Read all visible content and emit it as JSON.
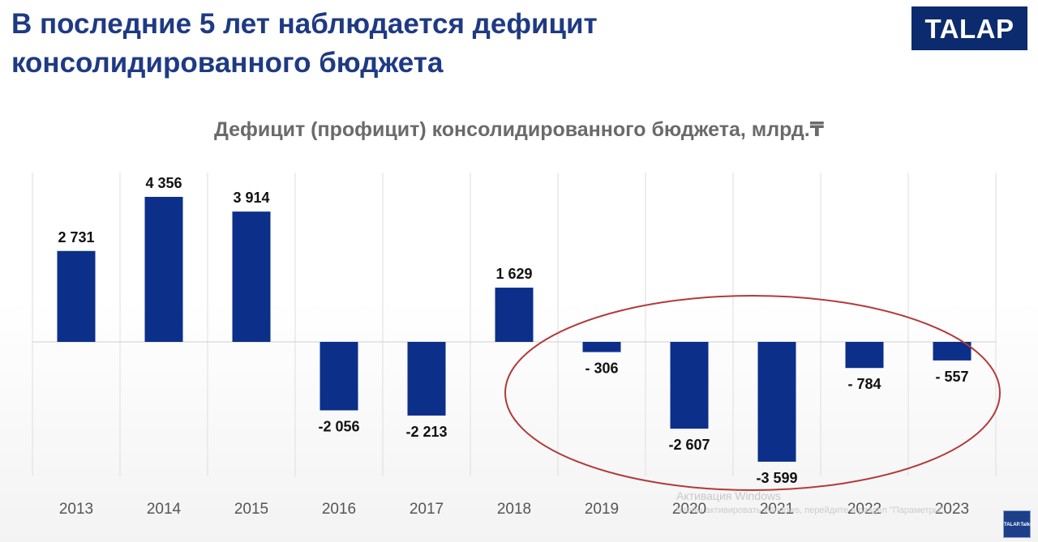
{
  "slide": {
    "title": "В последние 5 лет наблюдается дефицит консолидированного бюджета"
  },
  "logo": {
    "text": "TALAP"
  },
  "colors": {
    "title": "#1f3a84",
    "bar": "#0c2f8a",
    "logo_bg": "#0c2a6e",
    "highlight_ellipse": "#b23a3a",
    "chart_title": "#6a6a6a"
  },
  "chart_data": {
    "type": "bar",
    "title": "Дефицит (профицит) консолидированного бюджета, млрд.₸",
    "categories": [
      "2013",
      "2014",
      "2015",
      "2016",
      "2017",
      "2018",
      "2019",
      "2020",
      "2021",
      "2022",
      "2023"
    ],
    "values": [
      2731,
      4356,
      3914,
      -2056,
      -2213,
      1629,
      -306,
      -2607,
      -3599,
      -784,
      -557
    ],
    "data_labels": [
      "2 731",
      "4 356",
      "3 914",
      "-2 056",
      "-2 213",
      "1 629",
      "- 306",
      "-2 607",
      "-3 599",
      "- 784",
      "- 557"
    ],
    "xlabel": "",
    "ylabel": "",
    "ylim": [
      -4000,
      5000
    ],
    "grid": "vertical",
    "legend": "none",
    "highlight": {
      "shape": "ellipse",
      "categories": [
        "2019",
        "2020",
        "2021",
        "2022",
        "2023"
      ]
    }
  },
  "watermark": {
    "line1": "Активация Windows",
    "line2": "Чтобы активировать Windows, перейдите в раздел \"Параметры\"."
  },
  "corner_logo": {
    "text": "TALAP.Talks"
  }
}
